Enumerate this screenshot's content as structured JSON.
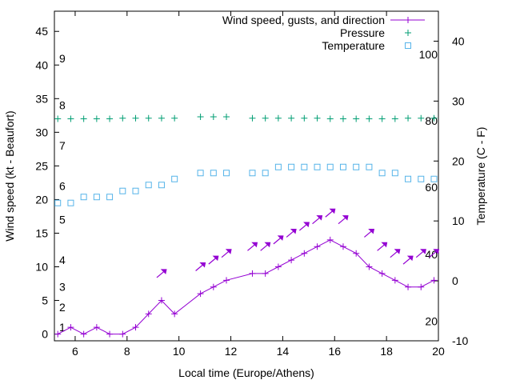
{
  "chart_data": {
    "type": "line",
    "xlabel": "Local time (Europe/Athens)",
    "ylabel": "Wind speed (kt - Beaufort)",
    "y2label": "Temperature (C - F)",
    "xlim": [
      5.2,
      20
    ],
    "ylim": [
      -1,
      48
    ],
    "y2lim": [
      -10,
      45
    ],
    "x_ticks": [
      6,
      8,
      10,
      12,
      14,
      16,
      18,
      20
    ],
    "y_ticks": [
      0,
      5,
      10,
      15,
      20,
      25,
      30,
      35,
      40,
      45
    ],
    "y2_ticks": [
      -10,
      0,
      10,
      20,
      30,
      40
    ],
    "beaufort_labels": [
      {
        "label": "1",
        "y": 1
      },
      {
        "label": "2",
        "y": 4
      },
      {
        "label": "3",
        "y": 7
      },
      {
        "label": "4",
        "y": 11
      },
      {
        "label": "5",
        "y": 17
      },
      {
        "label": "6",
        "y": 22
      },
      {
        "label": "7",
        "y": 28
      },
      {
        "label": "8",
        "y": 34
      },
      {
        "label": "9",
        "y": 41
      }
    ],
    "fahrenheit_labels": [
      {
        "label": "20",
        "y": -6.7
      },
      {
        "label": "40",
        "y": 4.4
      },
      {
        "label": "60",
        "y": 15.6
      },
      {
        "label": "80",
        "y": 26.7
      },
      {
        "label": "100",
        "y": 37.8
      }
    ],
    "legend_position": "top-right",
    "series": [
      {
        "name": "Wind speed, gusts, and direction",
        "color": "#9400d3",
        "style": "line-plus",
        "x": [
          5.33,
          5.83,
          6.33,
          6.83,
          7.33,
          7.83,
          8.33,
          8.83,
          9.33,
          9.83,
          10.83,
          11.33,
          11.83,
          12.83,
          13.33,
          13.83,
          14.33,
          14.83,
          15.33,
          15.83,
          16.33,
          16.83,
          17.33,
          17.83,
          18.33,
          18.83,
          19.33,
          19.83
        ],
        "values": [
          0,
          1,
          0,
          1,
          0,
          0,
          1,
          3,
          5,
          3,
          6,
          7,
          8,
          9,
          9,
          10,
          11,
          12,
          13,
          14,
          13,
          12,
          10,
          9,
          8,
          7,
          7,
          8
        ]
      },
      {
        "name": "Gust direction arrows",
        "color": "#9400d3",
        "style": "arrows",
        "x": [
          9.33,
          10.83,
          11.33,
          11.83,
          12.83,
          13.33,
          13.83,
          14.33,
          14.83,
          15.33,
          15.83,
          16.33,
          17.33,
          17.83,
          18.33,
          18.83,
          19.33,
          19.83
        ],
        "values": [
          9,
          10,
          11,
          12,
          13,
          13,
          14,
          15,
          16,
          17,
          18,
          17,
          15,
          13,
          12,
          11,
          12,
          12
        ]
      },
      {
        "name": "Pressure",
        "color": "#009e73",
        "style": "plus",
        "x": [
          5.33,
          5.83,
          6.33,
          6.83,
          7.33,
          7.83,
          8.33,
          8.83,
          9.33,
          9.83,
          10.83,
          11.33,
          11.83,
          12.83,
          13.33,
          13.83,
          14.33,
          14.83,
          15.33,
          15.83,
          16.33,
          16.83,
          17.33,
          17.83,
          18.33,
          18.83,
          19.33,
          19.83
        ],
        "values": [
          32,
          32,
          32,
          32,
          32,
          32.1,
          32.1,
          32.1,
          32.1,
          32.1,
          32.3,
          32.3,
          32.3,
          32.1,
          32.1,
          32.1,
          32.1,
          32.1,
          32.1,
          32,
          32,
          32,
          32,
          32,
          32,
          32.1,
          32.1,
          32.1
        ]
      },
      {
        "name": "Temperature",
        "color": "#56b4e9",
        "style": "square",
        "axis": "y2",
        "x": [
          5.33,
          5.83,
          6.33,
          6.83,
          7.33,
          7.83,
          8.33,
          8.83,
          9.33,
          9.83,
          10.83,
          11.33,
          11.83,
          12.83,
          13.33,
          13.83,
          14.33,
          14.83,
          15.33,
          15.83,
          16.33,
          16.83,
          17.33,
          17.83,
          18.33,
          18.83,
          19.33,
          19.83
        ],
        "values": [
          13,
          13,
          14,
          14,
          14,
          15,
          15,
          16,
          16,
          17,
          18,
          18,
          18,
          18,
          18,
          19,
          19,
          19,
          19,
          19,
          19,
          19,
          19,
          18,
          18,
          17,
          17,
          17
        ]
      }
    ]
  }
}
